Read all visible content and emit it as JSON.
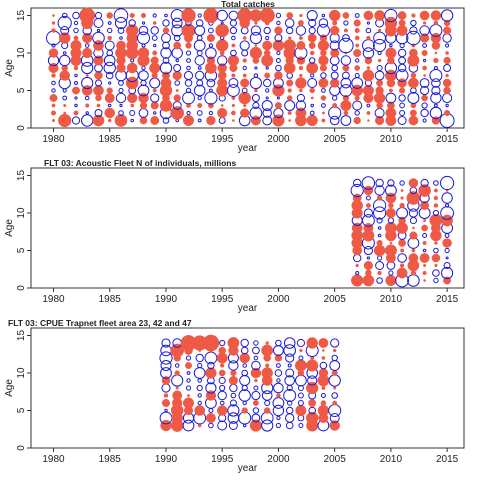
{
  "chart_data": [
    {
      "type": "scatter",
      "title": "Total catches",
      "title_align": "center",
      "xlabel": "year",
      "ylabel": "Age",
      "xlim": [
        1978,
        2016.5
      ],
      "ylim": [
        0,
        16
      ],
      "xticks": [
        1980,
        1985,
        1990,
        1995,
        2000,
        2005,
        2010,
        2015
      ],
      "yticks": [
        0,
        5,
        10,
        15
      ],
      "years": [
        1980,
        2015
      ],
      "ages": [
        1,
        15
      ],
      "grid": "off",
      "legend": "none",
      "note": "Bubble plot of residuals: red filled = positive, blue open = negative; bubble size proportional to magnitude. Values estimated from the image.",
      "ratio_positive": 0.52,
      "highlights": [
        {
          "x": 1983,
          "y": 15,
          "value": 2.2
        },
        {
          "x": 1992,
          "y": 15,
          "value": 1.8
        },
        {
          "x": 1994,
          "y": 15,
          "value": 2.0
        },
        {
          "x": 1997,
          "y": 15,
          "value": 1.9
        },
        {
          "x": 1999,
          "y": 15,
          "value": 2.0
        },
        {
          "x": 1992,
          "y": 13,
          "value": 1.7
        },
        {
          "x": 1995,
          "y": 13,
          "value": 1.6
        },
        {
          "x": 1981,
          "y": 1,
          "value": 1.5
        },
        {
          "x": 1991,
          "y": 2,
          "value": 1.6
        },
        {
          "x": 1980,
          "y": 12,
          "value": -1.8
        },
        {
          "x": 1986,
          "y": 15,
          "value": -1.7
        },
        {
          "x": 2006,
          "y": 11,
          "value": -1.9
        },
        {
          "x": 2012,
          "y": 12,
          "value": -1.7
        },
        {
          "x": 2015,
          "y": 1,
          "value": -1.8
        },
        {
          "x": 1981,
          "y": 14,
          "value": -1.6
        }
      ]
    },
    {
      "type": "scatter",
      "title": "FLT 03: Acoustic Fleet   N of individuals, millions",
      "title_align": "left",
      "xlabel": "year",
      "ylabel": "Age",
      "xlim": [
        1978,
        2016.5
      ],
      "ylim": [
        0,
        16
      ],
      "xticks": [
        1980,
        1985,
        1990,
        1995,
        2000,
        2005,
        2010,
        2015
      ],
      "yticks": [
        0,
        5,
        10,
        15
      ],
      "years": [
        2007,
        2015
      ],
      "ages": [
        1,
        14
      ],
      "grid": "off",
      "legend": "none",
      "ratio_positive": 0.5,
      "highlights": [
        {
          "x": 2008,
          "y": 14,
          "value": -1.4
        },
        {
          "x": 2015,
          "y": 14,
          "value": -1.6
        },
        {
          "x": 2011,
          "y": 1,
          "value": -1.5
        },
        {
          "x": 2012,
          "y": 12,
          "value": 1.6
        },
        {
          "x": 2014,
          "y": 9,
          "value": 1.4
        },
        {
          "x": 2015,
          "y": 10,
          "value": -1.5
        }
      ]
    },
    {
      "type": "scatter",
      "title": "FLT 03: CPUE Trapnet fleet area 23, 42 and 47",
      "title_align": "left",
      "xlabel": "year",
      "ylabel": "Age",
      "xlim": [
        1978,
        2016.5
      ],
      "ylim": [
        0,
        16
      ],
      "xticks": [
        1980,
        1985,
        1990,
        1995,
        2000,
        2005,
        2010,
        2015
      ],
      "yticks": [
        0,
        5,
        10,
        15
      ],
      "years": [
        1990,
        2005
      ],
      "ages": [
        3,
        14
      ],
      "grid": "off",
      "legend": "none",
      "ratio_positive": 0.45,
      "highlights": [
        {
          "x": 1992,
          "y": 14,
          "value": 2.2
        },
        {
          "x": 1993,
          "y": 14,
          "value": 2.0
        },
        {
          "x": 1994,
          "y": 14,
          "value": 2.4
        },
        {
          "x": 1991,
          "y": 13,
          "value": 1.6
        },
        {
          "x": 1990,
          "y": 13,
          "value": -1.0
        }
      ]
    }
  ],
  "colors": {
    "positive": "#ee5a45",
    "negative": "#1a1ad8",
    "axes": "#333333",
    "text": "#222222"
  }
}
